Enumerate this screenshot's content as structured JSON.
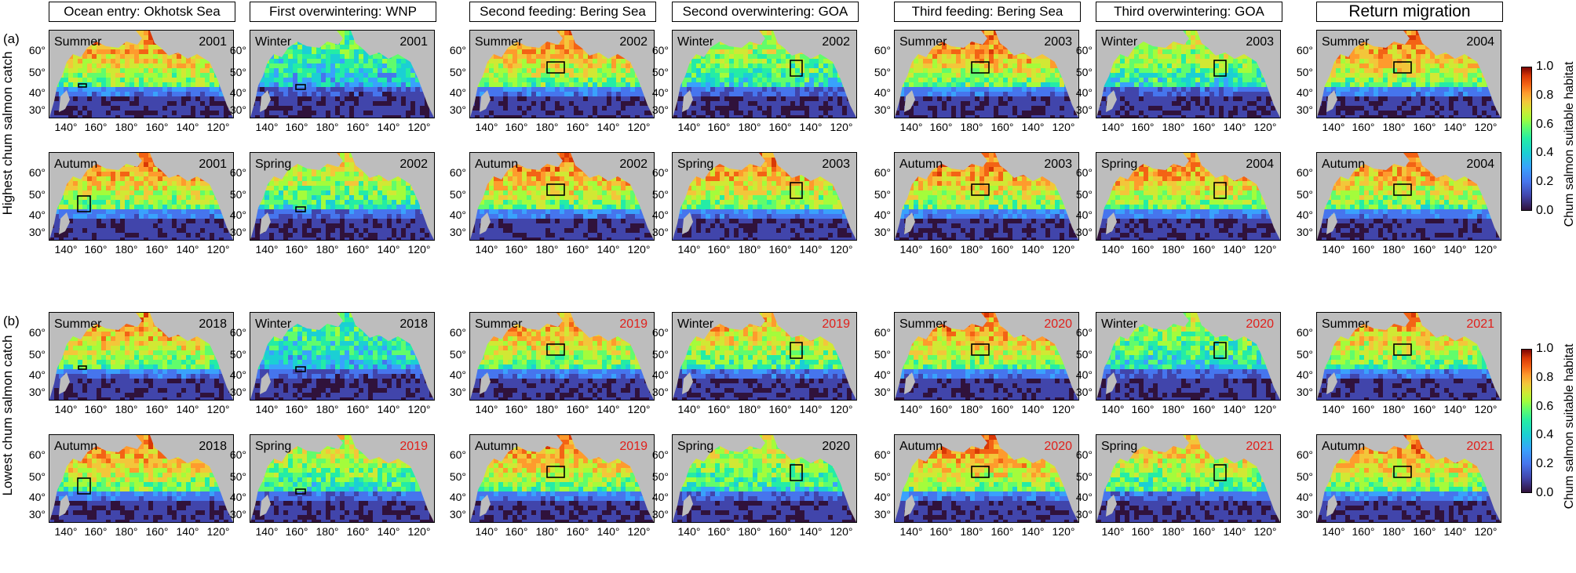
{
  "column_headers": [
    "Ocean entry: Okhotsk Sea",
    "First overwintering: WNP",
    "Second feeding: Bering Sea",
    "Second overwintering: GOA",
    "Third feeding: Bering Sea",
    "Third overwintering: GOA",
    "Return migration"
  ],
  "section_labels": [
    "(a)",
    "(b)"
  ],
  "group_labels": [
    "Highest chum salmon catch",
    "Lowest chum salmon catch"
  ],
  "lat_labels": [
    "60°",
    "50°",
    "40°",
    "30°"
  ],
  "lon_labels": [
    "140°",
    "160°",
    "180°",
    "160°",
    "140°",
    "120°"
  ],
  "colorbar": {
    "title": "Chum salmon suitable habitat",
    "ticks": [
      "1.0",
      "0.8",
      "0.6",
      "0.4",
      "0.2",
      "0.0"
    ],
    "range": [
      0,
      1
    ],
    "colormap": "turbo"
  },
  "panels": [
    {
      "season": "Summer",
      "year": "2001",
      "highlight": false,
      "box": "okhotsk"
    },
    {
      "season": "Winter",
      "year": "2001",
      "highlight": false,
      "box": "wnp"
    },
    {
      "season": "Summer",
      "year": "2002",
      "highlight": false,
      "box": "bering"
    },
    {
      "season": "Winter",
      "year": "2002",
      "highlight": false,
      "box": "goa"
    },
    {
      "season": "Summer",
      "year": "2003",
      "highlight": false,
      "box": "bering"
    },
    {
      "season": "Winter",
      "year": "2003",
      "highlight": false,
      "box": "goa"
    },
    {
      "season": "Summer",
      "year": "2004",
      "highlight": false,
      "box": "bering"
    },
    {
      "season": "Autumn",
      "year": "2001",
      "highlight": false,
      "box": "okhotsk_large"
    },
    {
      "season": "Spring",
      "year": "2002",
      "highlight": false,
      "box": "wnp"
    },
    {
      "season": "Autumn",
      "year": "2002",
      "highlight": false,
      "box": "bering"
    },
    {
      "season": "Spring",
      "year": "2003",
      "highlight": false,
      "box": "goa"
    },
    {
      "season": "Autumn",
      "year": "2003",
      "highlight": false,
      "box": "bering"
    },
    {
      "season": "Spring",
      "year": "2004",
      "highlight": false,
      "box": "goa"
    },
    {
      "season": "Autumn",
      "year": "2004",
      "highlight": false,
      "box": "bering"
    },
    {
      "season": "Summer",
      "year": "2018",
      "highlight": false,
      "box": "okhotsk"
    },
    {
      "season": "Winter",
      "year": "2018",
      "highlight": false,
      "box": "wnp"
    },
    {
      "season": "Summer",
      "year": "2019",
      "highlight": true,
      "box": "bering"
    },
    {
      "season": "Winter",
      "year": "2019",
      "highlight": true,
      "box": "goa"
    },
    {
      "season": "Summer",
      "year": "2020",
      "highlight": true,
      "box": "bering"
    },
    {
      "season": "Winter",
      "year": "2020",
      "highlight": true,
      "box": "goa"
    },
    {
      "season": "Summer",
      "year": "2021",
      "highlight": true,
      "box": "bering"
    },
    {
      "season": "Autumn",
      "year": "2018",
      "highlight": false,
      "box": "okhotsk_large"
    },
    {
      "season": "Spring",
      "year": "2019",
      "highlight": true,
      "box": "wnp"
    },
    {
      "season": "Autumn",
      "year": "2019",
      "highlight": true,
      "box": "bering"
    },
    {
      "season": "Spring",
      "year": "2020",
      "highlight": false,
      "box": "goa"
    },
    {
      "season": "Autumn",
      "year": "2020",
      "highlight": true,
      "box": "bering"
    },
    {
      "season": "Spring",
      "year": "2021",
      "highlight": true,
      "box": "goa"
    },
    {
      "season": "Autumn",
      "year": "2021",
      "highlight": true,
      "box": "bering"
    }
  ],
  "colors": {
    "land": "#bdbdbd",
    "highlight_year": "#e0201b",
    "box": "#000000"
  }
}
